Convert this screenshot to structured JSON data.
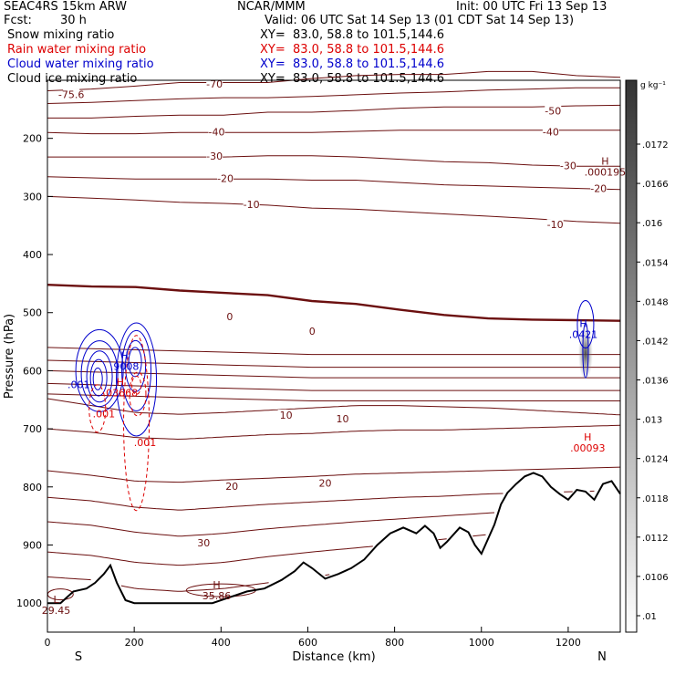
{
  "header": {
    "model": "SEAC4RS 15km ARW",
    "center": "NCAR/MMM",
    "init": "Init: 00 UTC Fri 13 Sep 13",
    "fcst_label": "Fcst:",
    "fcst_value": "30 h",
    "valid": "Valid: 06 UTC Sat 14 Sep 13 (01 CDT Sat 14 Sep 13)"
  },
  "fields": [
    {
      "name": "Snow mixing ratio",
      "xy": "XY=  83.0, 58.8 to 101.5,144.6",
      "color": "#000000"
    },
    {
      "name": "Rain water mixing ratio",
      "xy": "XY=  83.0, 58.8 to 101.5,144.6",
      "color": "#dd0000"
    },
    {
      "name": "Cloud water mixing ratio",
      "xy": "XY=  83.0, 58.8 to 101.5,144.6",
      "color": "#0000cc"
    },
    {
      "name": "Cloud ice mixing ratio",
      "xy": "XY=  83.0, 58.8 to 101.5,144.6",
      "color": "#000000"
    }
  ],
  "colors": {
    "isotherm": "#6b0f0f",
    "terrain": "#000000",
    "rain": "#dd0000",
    "cloud": "#0000cc"
  },
  "chart_data": {
    "type": "cross-section contour",
    "xlabel": "Distance (km)",
    "ylabel": "Pressure (hPa)",
    "xlim": [
      0,
      1320
    ],
    "ylim": [
      1050,
      100
    ],
    "xticks": [
      0,
      200,
      400,
      600,
      800,
      1000,
      1200
    ],
    "yticks": [
      200,
      300,
      400,
      500,
      600,
      700,
      800,
      900,
      1000
    ],
    "left_end_label": "S",
    "right_end_label": "N",
    "colorbar": {
      "units": "g kg⁻¹",
      "ticks": [
        ".0172",
        ".0166",
        ".016",
        ".0154",
        ".0148",
        ".0142",
        ".0136",
        ".013",
        ".0124",
        ".0118",
        ".0112",
        ".0106",
        ".01"
      ]
    },
    "isotherm_labels": [
      {
        "text": "-75.6",
        "x": 55,
        "y": 126
      },
      {
        "text": "-70",
        "x": 385,
        "y": 108
      },
      {
        "text": "-50",
        "x": 1165,
        "y": 154
      },
      {
        "text": "-40",
        "x": 390,
        "y": 190
      },
      {
        "text": "-40",
        "x": 1160,
        "y": 190
      },
      {
        "text": "-30",
        "x": 385,
        "y": 232
      },
      {
        "text": "-30",
        "x": 1200,
        "y": 248
      },
      {
        "text": "-20",
        "x": 410,
        "y": 270
      },
      {
        "text": "-20",
        "x": 1270,
        "y": 288
      },
      {
        "text": "-10",
        "x": 470,
        "y": 315
      },
      {
        "text": "-10",
        "x": 1170,
        "y": 350
      },
      {
        "text": "0",
        "x": 420,
        "y": 508
      },
      {
        "text": "0",
        "x": 610,
        "y": 533
      },
      {
        "text": "10",
        "x": 550,
        "y": 678
      },
      {
        "text": "10",
        "x": 680,
        "y": 684
      },
      {
        "text": "20",
        "x": 425,
        "y": 800
      },
      {
        "text": "20",
        "x": 640,
        "y": 795
      },
      {
        "text": "30",
        "x": 360,
        "y": 898
      }
    ],
    "extrema": [
      {
        "kind": "H",
        "value": ".000195",
        "x": 1285,
        "y": 245,
        "color": "isotherm"
      },
      {
        "kind": "H",
        "value": ".0421",
        "x": 1235,
        "y": 525,
        "color": "cloud"
      },
      {
        "kind": "H",
        "value": ".9008",
        "x": 178,
        "y": 580,
        "color": "cloud"
      },
      {
        "kind": "H",
        "value": ".03668",
        "x": 168,
        "y": 625,
        "color": "rain"
      },
      {
        "kind": "H",
        "value": ".00093",
        "x": 1245,
        "y": 720,
        "color": "rain"
      },
      {
        "kind": "H",
        "value": "35.86",
        "x": 390,
        "y": 975,
        "color": "isotherm"
      },
      {
        "kind": "L",
        "value": "29.45",
        "x": 20,
        "y": 1000,
        "color": "isotherm"
      }
    ],
    "contour_value_labels": [
      {
        "text": ".001",
        "x": 72,
        "y": 630,
        "color": "cloud"
      },
      {
        "text": ".001",
        "x": 130,
        "y": 680,
        "color": "rain"
      },
      {
        "text": ".001",
        "x": 225,
        "y": 730,
        "color": "rain"
      }
    ],
    "terrain": {
      "x": [
        0,
        30,
        60,
        90,
        110,
        130,
        145,
        160,
        180,
        200,
        260,
        330,
        380,
        420,
        460,
        500,
        540,
        570,
        590,
        610,
        640,
        670,
        700,
        730,
        760,
        790,
        820,
        850,
        870,
        890,
        905,
        920,
        950,
        970,
        985,
        1000,
        1015,
        1030,
        1045,
        1060,
        1080,
        1100,
        1120,
        1140,
        1160,
        1180,
        1200,
        1220,
        1240,
        1260,
        1280,
        1300,
        1320
      ],
      "p": [
        1000,
        1000,
        980,
        975,
        965,
        950,
        935,
        965,
        995,
        1000,
        1000,
        1000,
        1000,
        990,
        980,
        975,
        960,
        945,
        930,
        940,
        958,
        950,
        940,
        925,
        900,
        880,
        870,
        880,
        867,
        880,
        905,
        895,
        870,
        878,
        900,
        915,
        890,
        865,
        830,
        810,
        795,
        782,
        776,
        782,
        800,
        812,
        822,
        805,
        808,
        822,
        795,
        790,
        812
      ]
    },
    "isotherms": [
      {
        "value": -70,
        "label": "-70",
        "p": [
          118,
          115,
          110,
          104,
          104,
          104,
          97,
          92,
          90,
          90,
          85,
          85,
          92,
          95
        ]
      },
      {
        "value": -60,
        "label": "",
        "p": [
          140,
          138,
          135,
          132,
          130,
          130,
          128,
          125,
          122,
          120,
          117,
          115,
          113,
          113
        ]
      },
      {
        "value": -50,
        "label": "-50",
        "p": [
          165,
          165,
          162,
          160,
          160,
          155,
          155,
          152,
          148,
          146,
          146,
          146,
          144,
          143
        ]
      },
      {
        "value": -40,
        "label": "-40",
        "p": [
          190,
          192,
          192,
          190,
          190,
          190,
          190,
          188,
          186,
          186,
          186,
          186,
          186,
          186
        ]
      },
      {
        "value": -30,
        "label": "-30",
        "p": [
          232,
          232,
          232,
          232,
          232,
          230,
          230,
          232,
          236,
          240,
          242,
          246,
          248,
          248
        ]
      },
      {
        "value": -20,
        "label": "-20",
        "p": [
          266,
          268,
          270,
          270,
          270,
          270,
          272,
          272,
          276,
          280,
          282,
          284,
          286,
          288
        ]
      },
      {
        "value": -10,
        "label": "-10",
        "p": [
          300,
          303,
          306,
          310,
          312,
          315,
          320,
          322,
          326,
          330,
          334,
          338,
          343,
          346
        ]
      },
      {
        "value": 0,
        "label": "0",
        "p": [
          452,
          455,
          456,
          462,
          466,
          470,
          480,
          485,
          495,
          504,
          510,
          512,
          513,
          514
        ],
        "bold": true
      }
    ]
  }
}
